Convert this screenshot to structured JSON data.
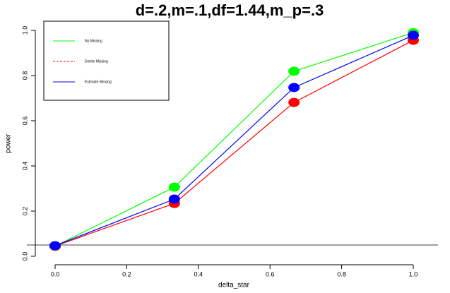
{
  "chart_data": {
    "type": "line",
    "title": "d=.2,m=.1,df=1.44,m_p=.3",
    "x_label": "delta_star",
    "y_label": "power",
    "x": [
      0,
      0.333,
      0.667,
      1
    ],
    "series": [
      {
        "name": "No Missing",
        "color": "#00ff00",
        "linestyle": "solid",
        "values": [
          0.045,
          0.306,
          0.819,
          0.99
        ]
      },
      {
        "name": "Delete Missing",
        "color": "#ff0000",
        "linestyle": "dashed",
        "values": [
          0.045,
          0.234,
          0.681,
          0.956
        ]
      },
      {
        "name": "Estimate Missing",
        "color": "#0000ff",
        "linestyle": "solid",
        "values": [
          0.047,
          0.253,
          0.747,
          0.978
        ]
      }
    ],
    "hline": 0.05,
    "xlim": [
      0,
      1
    ],
    "ylim": [
      0,
      1
    ],
    "xticks": [
      {
        "value": 0,
        "label": "0.0"
      },
      0.2,
      0.4,
      0.6,
      0.8,
      {
        "value": 1,
        "label": "1.0"
      }
    ],
    "yticks": [
      {
        "value": 0,
        "label": "0.0"
      },
      0.2,
      0.4,
      0.6,
      0.8,
      {
        "value": 1,
        "label": "1.0"
      }
    ],
    "legend": "topleft",
    "grid": false
  }
}
